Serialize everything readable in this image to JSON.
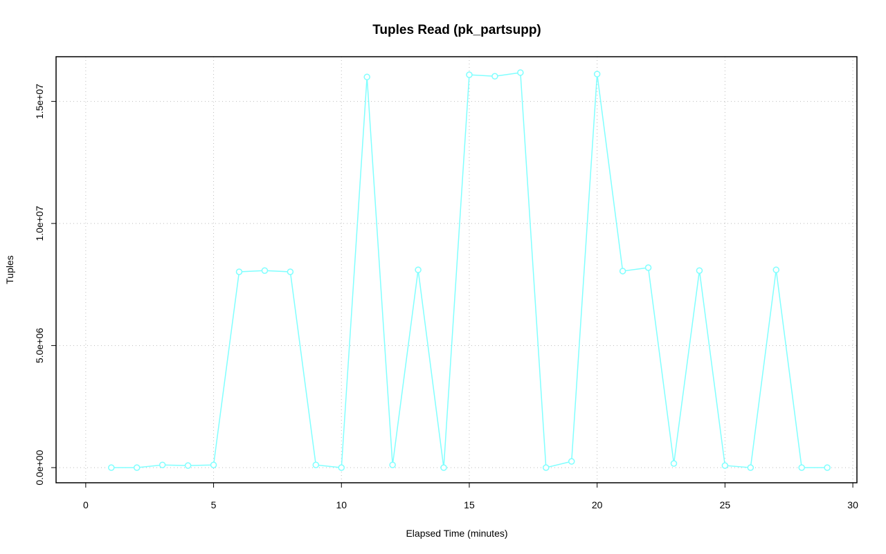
{
  "chart_data": {
    "type": "line",
    "title": "Tuples Read (pk_partsupp)",
    "x_label": "Elapsed Time (minutes)",
    "y_label": "Tuples",
    "x": [
      1,
      2,
      3,
      4,
      5,
      6,
      7,
      8,
      9,
      10,
      11,
      12,
      13,
      14,
      15,
      16,
      17,
      18,
      19,
      20,
      21,
      22,
      23,
      24,
      25,
      26,
      27,
      28,
      29
    ],
    "values": [
      0,
      0,
      110000,
      85000,
      110000,
      8020000,
      8070000,
      8020000,
      110000,
      0,
      16000000,
      110000,
      8100000,
      0,
      16090000,
      16030000,
      16180000,
      0,
      255000,
      16120000,
      8050000,
      8190000,
      170000,
      8070000,
      85000,
      0,
      8100000,
      0,
      0
    ],
    "color": "#80ffff",
    "xlim": [
      -1.16,
      30.16
    ],
    "xticks": [
      0,
      5,
      10,
      15,
      20,
      25,
      30
    ],
    "ylim": [
      -620000,
      16830000
    ],
    "yticks": [
      {
        "value": 0,
        "label": "0.0e+00"
      },
      {
        "value": 5000000,
        "label": "5.0e+06"
      },
      {
        "value": 10000000,
        "label": "1.0e+07"
      },
      {
        "value": 15000000,
        "label": "1.5e+07"
      }
    ],
    "grid": true
  }
}
